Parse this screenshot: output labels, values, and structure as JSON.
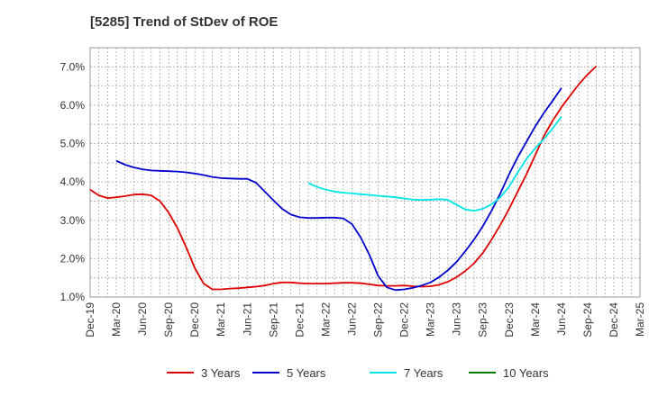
{
  "chart_data": {
    "type": "line",
    "title": "[5285]  Trend of StDev of ROE",
    "xlabel": "",
    "ylabel": "",
    "x_ticks": [
      "Dec-19",
      "Mar-20",
      "Jun-20",
      "Sep-20",
      "Dec-20",
      "Mar-21",
      "Jun-21",
      "Sep-21",
      "Dec-21",
      "Mar-22",
      "Jun-22",
      "Sep-22",
      "Dec-22",
      "Mar-23",
      "Jun-23",
      "Sep-23",
      "Dec-23",
      "Mar-24",
      "Jun-24",
      "Sep-24",
      "Dec-24",
      "Mar-25"
    ],
    "y_ticks": [
      "1.0%",
      "2.0%",
      "3.0%",
      "4.0%",
      "5.0%",
      "6.0%",
      "7.0%"
    ],
    "ylim": [
      1.0,
      7.5
    ],
    "grid": true,
    "legend_position": "bottom",
    "series": [
      {
        "name": "3 Years",
        "color": "#dd0000",
        "values": [
          3.8,
          3.65,
          3.58,
          3.6,
          3.63,
          3.67,
          3.68,
          3.65,
          3.5,
          3.2,
          2.8,
          2.3,
          1.75,
          1.35,
          1.2,
          1.2,
          1.22,
          1.23,
          1.25,
          1.27,
          1.3,
          1.35,
          1.38,
          1.38,
          1.36,
          1.35,
          1.35,
          1.35,
          1.36,
          1.37,
          1.37,
          1.36,
          1.33,
          1.3,
          1.29,
          1.29,
          1.3,
          1.28,
          1.27,
          1.28,
          1.32,
          1.4,
          1.52,
          1.68,
          1.88,
          2.15,
          2.5,
          2.88,
          3.3,
          3.75,
          4.2,
          4.7,
          5.2,
          5.6,
          5.95,
          6.25,
          6.55,
          6.8,
          7.02
        ]
      },
      {
        "name": "5 Years",
        "color": "#0000cc",
        "values": [
          null,
          null,
          null,
          4.55,
          4.45,
          4.38,
          4.33,
          4.3,
          4.29,
          4.28,
          4.27,
          4.25,
          4.22,
          4.18,
          4.13,
          4.1,
          4.09,
          4.08,
          4.08,
          3.98,
          3.75,
          3.52,
          3.3,
          3.15,
          3.08,
          3.06,
          3.06,
          3.07,
          3.07,
          3.05,
          2.9,
          2.55,
          2.1,
          1.55,
          1.25,
          1.18,
          1.2,
          1.24,
          1.3,
          1.38,
          1.52,
          1.7,
          1.92,
          2.2,
          2.5,
          2.85,
          3.25,
          3.7,
          4.2,
          4.65,
          5.05,
          5.45,
          5.8,
          6.12,
          6.45
        ]
      },
      {
        "name": "7 Years",
        "color": "#00e5e5",
        "values": [
          null,
          null,
          null,
          null,
          null,
          null,
          null,
          null,
          null,
          null,
          null,
          null,
          null,
          null,
          null,
          null,
          null,
          null,
          null,
          null,
          null,
          null,
          null,
          null,
          null,
          3.97,
          3.87,
          3.8,
          3.75,
          3.72,
          3.7,
          3.68,
          3.66,
          3.64,
          3.62,
          3.6,
          3.57,
          3.54,
          3.53,
          3.54,
          3.55,
          3.53,
          3.4,
          3.28,
          3.25,
          3.3,
          3.42,
          3.6,
          3.88,
          4.25,
          4.6,
          4.88,
          5.12,
          5.4,
          5.7
        ]
      },
      {
        "name": "10 Years",
        "color": "#007f00",
        "values": []
      }
    ]
  }
}
